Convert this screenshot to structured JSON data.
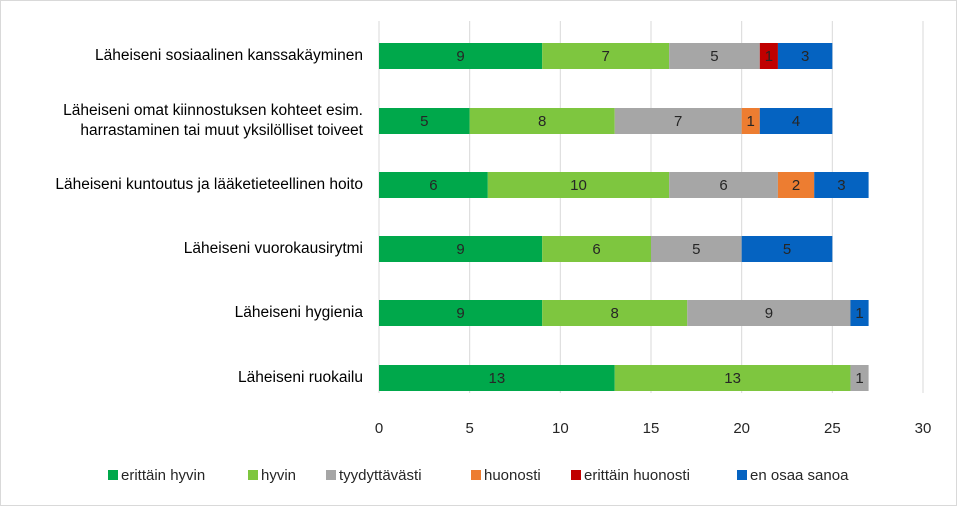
{
  "chart_data": {
    "type": "bar",
    "orientation": "horizontal",
    "stacked": true,
    "categories": [
      "Läheiseni sosiaalinen kanssakäyminen",
      "Läheiseni omat kiinnostuksen kohteet esim.\nharrastaminen tai muut yksilölliset toiveet",
      "Läheiseni kuntoutus ja lääketieteellinen hoito",
      "Läheiseni vuorokausirytmi",
      "Läheiseni hygienia",
      "Läheiseni ruokailu"
    ],
    "series": [
      {
        "name": "erittäin hyvin",
        "color": "#00a84b",
        "values": [
          9,
          5,
          6,
          9,
          9,
          13
        ]
      },
      {
        "name": "hyvin",
        "color": "#7ec63f",
        "values": [
          7,
          8,
          10,
          6,
          8,
          13
        ]
      },
      {
        "name": "tyydyttävästi",
        "color": "#a6a6a6",
        "values": [
          5,
          7,
          6,
          5,
          9,
          1
        ]
      },
      {
        "name": "huonosti",
        "color": "#ed7d31",
        "values": [
          0,
          1,
          2,
          0,
          0,
          0
        ]
      },
      {
        "name": "erittäin huonosti",
        "color": "#c00000",
        "values": [
          1,
          0,
          0,
          0,
          0,
          0
        ]
      },
      {
        "name": "en osaa sanoa",
        "color": "#0563c1",
        "values": [
          3,
          4,
          3,
          5,
          1,
          0
        ]
      }
    ],
    "xlim": [
      0,
      30
    ],
    "xticks": [
      0,
      5,
      10,
      15,
      20,
      25,
      30
    ],
    "grid": true,
    "legend": "bottom",
    "data_labels": true
  }
}
